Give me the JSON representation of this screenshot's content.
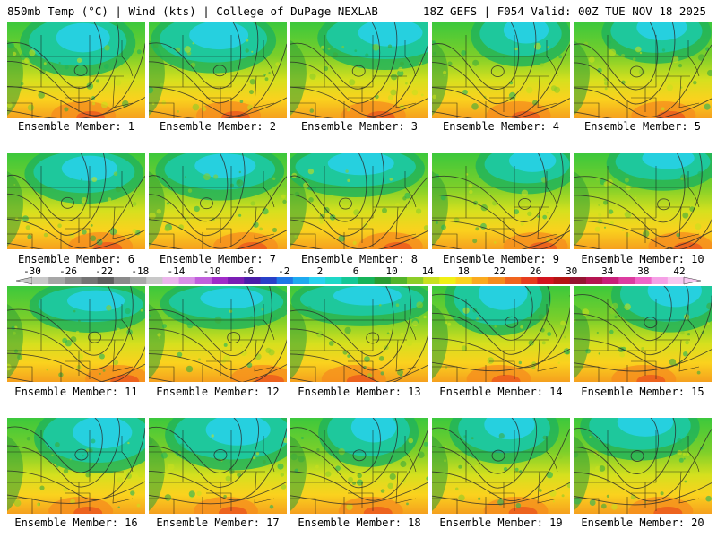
{
  "header": {
    "left": "850mb Temp (°C) | Wind (kts) | College of DuPage NEXLAB",
    "right": "18Z GEFS | F054 Valid: 00Z TUE NOV 18 2025"
  },
  "panels": [
    {
      "label": "Ensemble Member: 1"
    },
    {
      "label": "Ensemble Member: 2"
    },
    {
      "label": "Ensemble Member: 3"
    },
    {
      "label": "Ensemble Member: 4"
    },
    {
      "label": "Ensemble Member: 5"
    },
    {
      "label": "Ensemble Member: 6"
    },
    {
      "label": "Ensemble Member: 7"
    },
    {
      "label": "Ensemble Member: 8"
    },
    {
      "label": "Ensemble Member: 9"
    },
    {
      "label": "Ensemble Member: 10"
    },
    {
      "label": "Ensemble Member: 11"
    },
    {
      "label": "Ensemble Member: 12"
    },
    {
      "label": "Ensemble Member: 13"
    },
    {
      "label": "Ensemble Member: 14"
    },
    {
      "label": "Ensemble Member: 15"
    },
    {
      "label": "Ensemble Member: 16"
    },
    {
      "label": "Ensemble Member: 17"
    },
    {
      "label": "Ensemble Member: 18"
    },
    {
      "label": "Ensemble Member: 19"
    },
    {
      "label": "Ensemble Member: 20"
    }
  ],
  "colorbar": {
    "labels": [
      "-30",
      "-26",
      "-22",
      "-18",
      "-14",
      "-10",
      "-6",
      "-2",
      "2",
      "6",
      "10",
      "14",
      "18",
      "22",
      "26",
      "30",
      "34",
      "38",
      "42"
    ],
    "colors": [
      "#c8c8c8",
      "#a6a6a6",
      "#8c8c8c",
      "#747474",
      "#5e5e5e",
      "#8a8a8a",
      "#a8a8a8",
      "#c8c8c8",
      "#ebb5eb",
      "#d98fe6",
      "#c060dc",
      "#a02cc8",
      "#7a1eb4",
      "#4a1ea8",
      "#2840c8",
      "#1e78e6",
      "#1eaaf0",
      "#28d2f0",
      "#1ed8c8",
      "#14c896",
      "#16b45a",
      "#2a9c32",
      "#52b42a",
      "#8ccd28",
      "#c8e01e",
      "#f0f014",
      "#fad21e",
      "#faaa1e",
      "#f58c1e",
      "#f0641e",
      "#e63c1e",
      "#d2141e",
      "#b41414",
      "#961432",
      "#b41450",
      "#c81e78",
      "#dc3ca0",
      "#f064c8",
      "#f5a0e6",
      "#f8c8f0"
    ]
  }
}
